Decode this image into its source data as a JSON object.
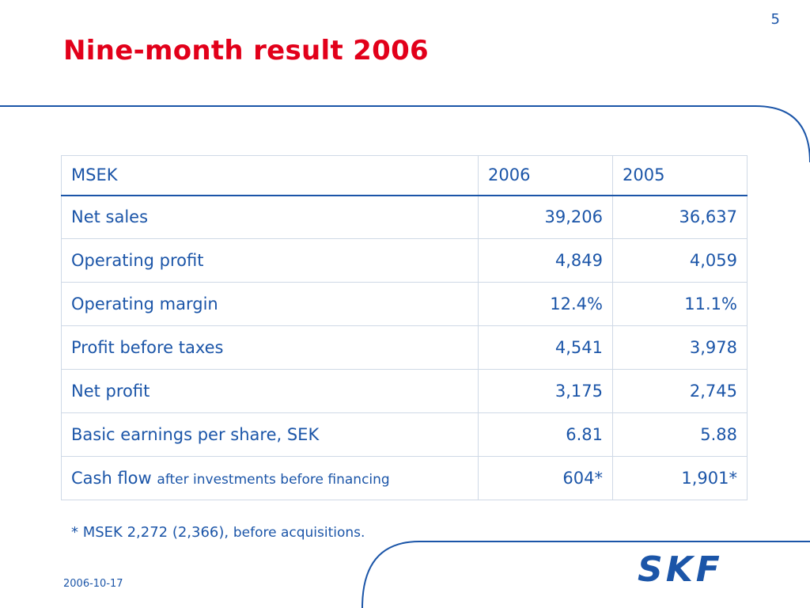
{
  "header": {
    "title": "Nine-month result 2006",
    "slide_number": "5"
  },
  "table": {
    "columns": [
      "MSEK",
      "2006",
      "2005"
    ],
    "rows": [
      {
        "label": "Net sales",
        "label_suffix": "",
        "v2006": "39,206",
        "v2005": "36,637"
      },
      {
        "label": "Operating profit",
        "label_suffix": "",
        "v2006": "4,849",
        "v2005": "4,059"
      },
      {
        "label": "Operating margin",
        "label_suffix": "",
        "v2006": "12.4%",
        "v2005": "11.1%"
      },
      {
        "label": "Profit before taxes",
        "label_suffix": "",
        "v2006": "4,541",
        "v2005": "3,978"
      },
      {
        "label": "Net profit",
        "label_suffix": "",
        "v2006": "3,175",
        "v2005": "2,745"
      },
      {
        "label": "Basic earnings per share, SEK",
        "label_suffix": "",
        "v2006": "6.81",
        "v2005": "5.88"
      },
      {
        "label": "Cash flow",
        "label_suffix": "after investments before financing",
        "v2006": "604*",
        "v2005": "1,901*"
      }
    ]
  },
  "footnote": {
    "main": "* MSEK 2,272 (2,366),",
    "suffix": "before acquisitions."
  },
  "footer": {
    "date": "2006-10-17",
    "logo_text": "SKF"
  },
  "colors": {
    "title": "#e2001a",
    "text": "#1b55a8",
    "grid": "#cfd9e6"
  }
}
